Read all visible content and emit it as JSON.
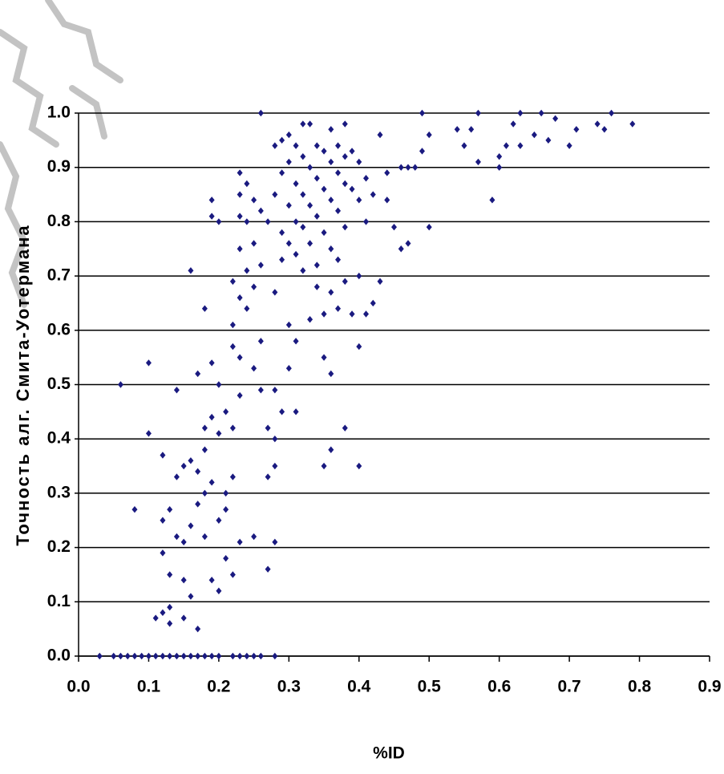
{
  "chart_data": {
    "type": "scatter",
    "x_label": "%ID",
    "y_label": "Точность алг. Смита-Уотермана",
    "color": "#1a1a80",
    "grid": true,
    "xlim": [
      0,
      0.9
    ],
    "ylim": [
      0,
      1
    ],
    "xticks": [
      {
        "value": 0,
        "label": "0.0"
      },
      0.1,
      0.2,
      0.3,
      0.4,
      0.5,
      0.6,
      0.7,
      0.8,
      0.9
    ],
    "yticks": [
      {
        "value": 0,
        "label": "0.0"
      },
      0.1,
      0.2,
      0.3,
      0.4,
      0.5,
      0.6,
      0.7,
      0.8,
      0.9,
      {
        "value": 1,
        "label": "1.0"
      }
    ],
    "x": [
      0.03,
      0.05,
      0.06,
      0.07,
      0.08,
      0.09,
      0.1,
      0.11,
      0.12,
      0.13,
      0.14,
      0.15,
      0.16,
      0.17,
      0.18,
      0.19,
      0.2,
      0.22,
      0.23,
      0.24,
      0.25,
      0.26,
      0.28,
      0.06,
      0.1,
      0.1,
      0.08,
      0.12,
      0.12,
      0.12,
      0.11,
      0.12,
      0.13,
      0.13,
      0.13,
      0.13,
      0.14,
      0.14,
      0.14,
      0.15,
      0.15,
      0.15,
      0.15,
      0.16,
      0.16,
      0.16,
      0.16,
      0.17,
      0.17,
      0.17,
      0.17,
      0.18,
      0.18,
      0.18,
      0.18,
      0.18,
      0.19,
      0.19,
      0.19,
      0.19,
      0.19,
      0.19,
      0.2,
      0.2,
      0.2,
      0.2,
      0.2,
      0.21,
      0.21,
      0.21,
      0.21,
      0.22,
      0.22,
      0.22,
      0.22,
      0.22,
      0.22,
      0.23,
      0.23,
      0.23,
      0.23,
      0.23,
      0.23,
      0.23,
      0.23,
      0.24,
      0.24,
      0.24,
      0.24,
      0.25,
      0.25,
      0.25,
      0.25,
      0.25,
      0.26,
      0.26,
      0.26,
      0.26,
      0.26,
      0.27,
      0.27,
      0.27,
      0.27,
      0.28,
      0.28,
      0.28,
      0.28,
      0.28,
      0.28,
      0.28,
      0.29,
      0.29,
      0.29,
      0.29,
      0.29,
      0.3,
      0.3,
      0.3,
      0.3,
      0.3,
      0.3,
      0.31,
      0.31,
      0.31,
      0.31,
      0.31,
      0.31,
      0.32,
      0.32,
      0.32,
      0.32,
      0.32,
      0.33,
      0.33,
      0.33,
      0.33,
      0.33,
      0.34,
      0.34,
      0.34,
      0.34,
      0.34,
      0.35,
      0.35,
      0.35,
      0.35,
      0.35,
      0.35,
      0.36,
      0.36,
      0.36,
      0.36,
      0.36,
      0.36,
      0.36,
      0.37,
      0.37,
      0.37,
      0.37,
      0.37,
      0.38,
      0.38,
      0.38,
      0.38,
      0.38,
      0.38,
      0.39,
      0.39,
      0.39,
      0.4,
      0.4,
      0.4,
      0.4,
      0.4,
      0.41,
      0.41,
      0.41,
      0.42,
      0.42,
      0.43,
      0.43,
      0.44,
      0.44,
      0.45,
      0.46,
      0.46,
      0.47,
      0.47,
      0.48,
      0.49,
      0.49,
      0.5,
      0.5,
      0.54,
      0.55,
      0.56,
      0.57,
      0.57,
      0.59,
      0.6,
      0.6,
      0.61,
      0.62,
      0.63,
      0.63,
      0.65,
      0.66,
      0.67,
      0.68,
      0.7,
      0.71,
      0.74,
      0.75,
      0.76,
      0.79
    ],
    "values": [
      0,
      0,
      0,
      0,
      0,
      0,
      0,
      0,
      0,
      0,
      0,
      0,
      0,
      0,
      0,
      0,
      0,
      0,
      0,
      0,
      0,
      0,
      0,
      0.5,
      0.54,
      0.41,
      0.27,
      0.37,
      0.25,
      0.19,
      0.07,
      0.08,
      0.09,
      0.06,
      0.15,
      0.27,
      0.22,
      0.33,
      0.49,
      0.35,
      0.21,
      0.14,
      0.07,
      0.36,
      0.24,
      0.11,
      0.71,
      0.52,
      0.34,
      0.28,
      0.05,
      0.64,
      0.42,
      0.38,
      0.3,
      0.22,
      0.84,
      0.81,
      0.54,
      0.44,
      0.32,
      0.14,
      0.8,
      0.5,
      0.41,
      0.25,
      0.12,
      0.45,
      0.3,
      0.27,
      0.18,
      0.69,
      0.61,
      0.57,
      0.42,
      0.33,
      0.15,
      0.89,
      0.85,
      0.81,
      0.75,
      0.66,
      0.55,
      0.48,
      0.21,
      0.87,
      0.8,
      0.71,
      0.64,
      0.84,
      0.76,
      0.68,
      0.53,
      0.22,
      1.0,
      0.82,
      0.72,
      0.58,
      0.49,
      0.8,
      0.42,
      0.33,
      0.16,
      0.94,
      0.85,
      0.67,
      0.49,
      0.4,
      0.35,
      0.21,
      0.95,
      0.89,
      0.78,
      0.73,
      0.45,
      0.96,
      0.91,
      0.83,
      0.76,
      0.61,
      0.53,
      0.94,
      0.87,
      0.8,
      0.74,
      0.58,
      0.45,
      0.98,
      0.92,
      0.85,
      0.79,
      0.71,
      0.98,
      0.9,
      0.83,
      0.76,
      0.62,
      0.94,
      0.88,
      0.81,
      0.72,
      0.68,
      0.93,
      0.86,
      0.78,
      0.63,
      0.55,
      0.35,
      0.97,
      0.91,
      0.84,
      0.75,
      0.67,
      0.52,
      0.38,
      0.94,
      0.89,
      0.82,
      0.73,
      0.64,
      0.98,
      0.92,
      0.87,
      0.79,
      0.69,
      0.42,
      0.93,
      0.86,
      0.63,
      0.91,
      0.84,
      0.7,
      0.57,
      0.35,
      0.88,
      0.8,
      0.63,
      0.85,
      0.65,
      0.96,
      0.69,
      0.89,
      0.84,
      0.79,
      0.9,
      0.75,
      0.9,
      0.76,
      0.9,
      0.93,
      1.0,
      0.96,
      0.79,
      0.97,
      0.94,
      0.97,
      1.0,
      0.91,
      0.84,
      0.9,
      0.92,
      0.94,
      0.98,
      1.0,
      0.94,
      0.96,
      1.0,
      0.95,
      0.99,
      0.94,
      0.97,
      0.98,
      0.97,
      1.0,
      0.98
    ]
  }
}
